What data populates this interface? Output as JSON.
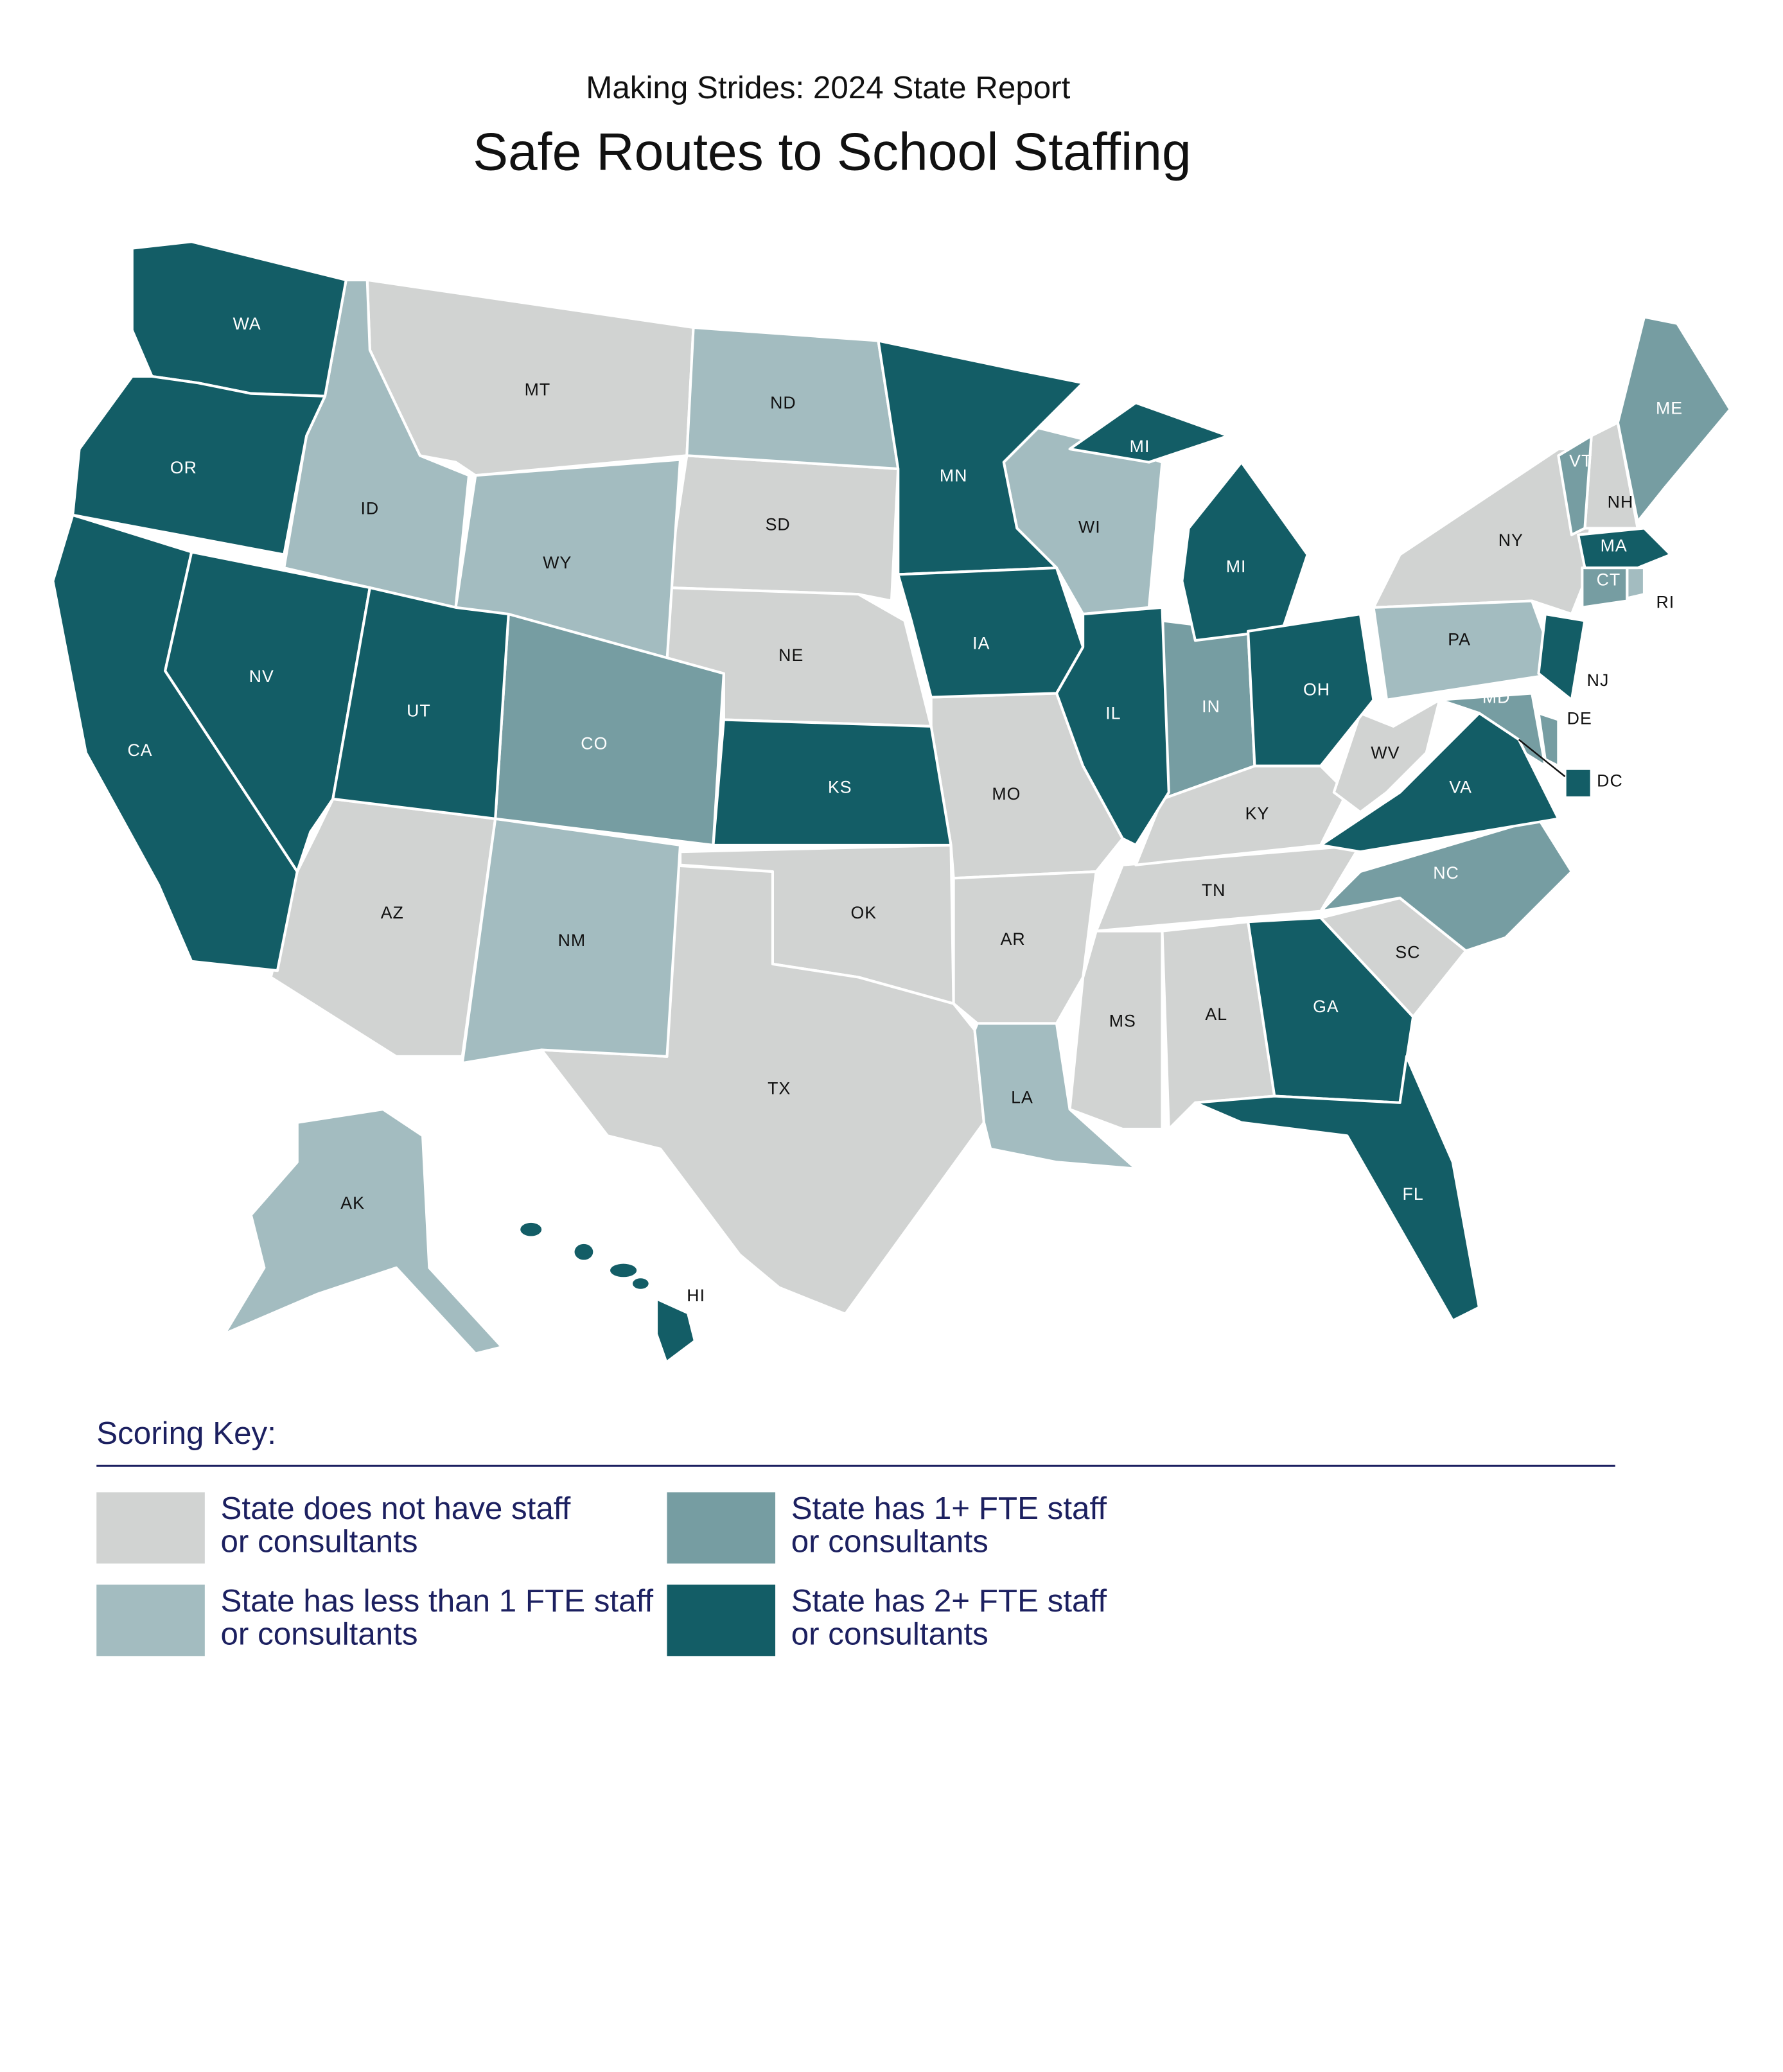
{
  "header": {
    "subtitle": "Making Strides:  2024 State Report",
    "title": "Safe Routes to School Staffing"
  },
  "legend": {
    "title": "Scoring Key:",
    "items": [
      {
        "lines": [
          "State does not have staff",
          "or consultants"
        ],
        "color": "#d1d3d2",
        "states": [
          "MT",
          "SD",
          "NE",
          "MO",
          "OK",
          "TX",
          "AR",
          "MS",
          "AL",
          "TN",
          "KY",
          "WV",
          "SC",
          "NY",
          "NH",
          "AZ"
        ]
      },
      {
        "lines": [
          "State has less than 1 FTE staff",
          "or consultants"
        ],
        "color": "#a3bcc0",
        "states": [
          "ID",
          "WY",
          "ND",
          "WI",
          "NM",
          "PA",
          "LA",
          "AK",
          "RI"
        ]
      },
      {
        "lines": [
          "State has 1+ FTE staff",
          "or consultants"
        ],
        "color": "#769da2",
        "states": [
          "CO",
          "IN",
          "NC",
          "ME",
          "VT",
          "CT",
          "MD",
          "DE"
        ]
      },
      {
        "lines": [
          "State has 2+ FTE staff",
          "or consultants"
        ],
        "color": "#135d66",
        "states": [
          "WA",
          "OR",
          "CA",
          "NV",
          "UT",
          "KS",
          "MN",
          "IA",
          "IL",
          "MI",
          "MI",
          "OH",
          "VA",
          "GA",
          "FL",
          "NJ",
          "MA",
          "DC",
          "HI"
        ]
      }
    ]
  }
}
